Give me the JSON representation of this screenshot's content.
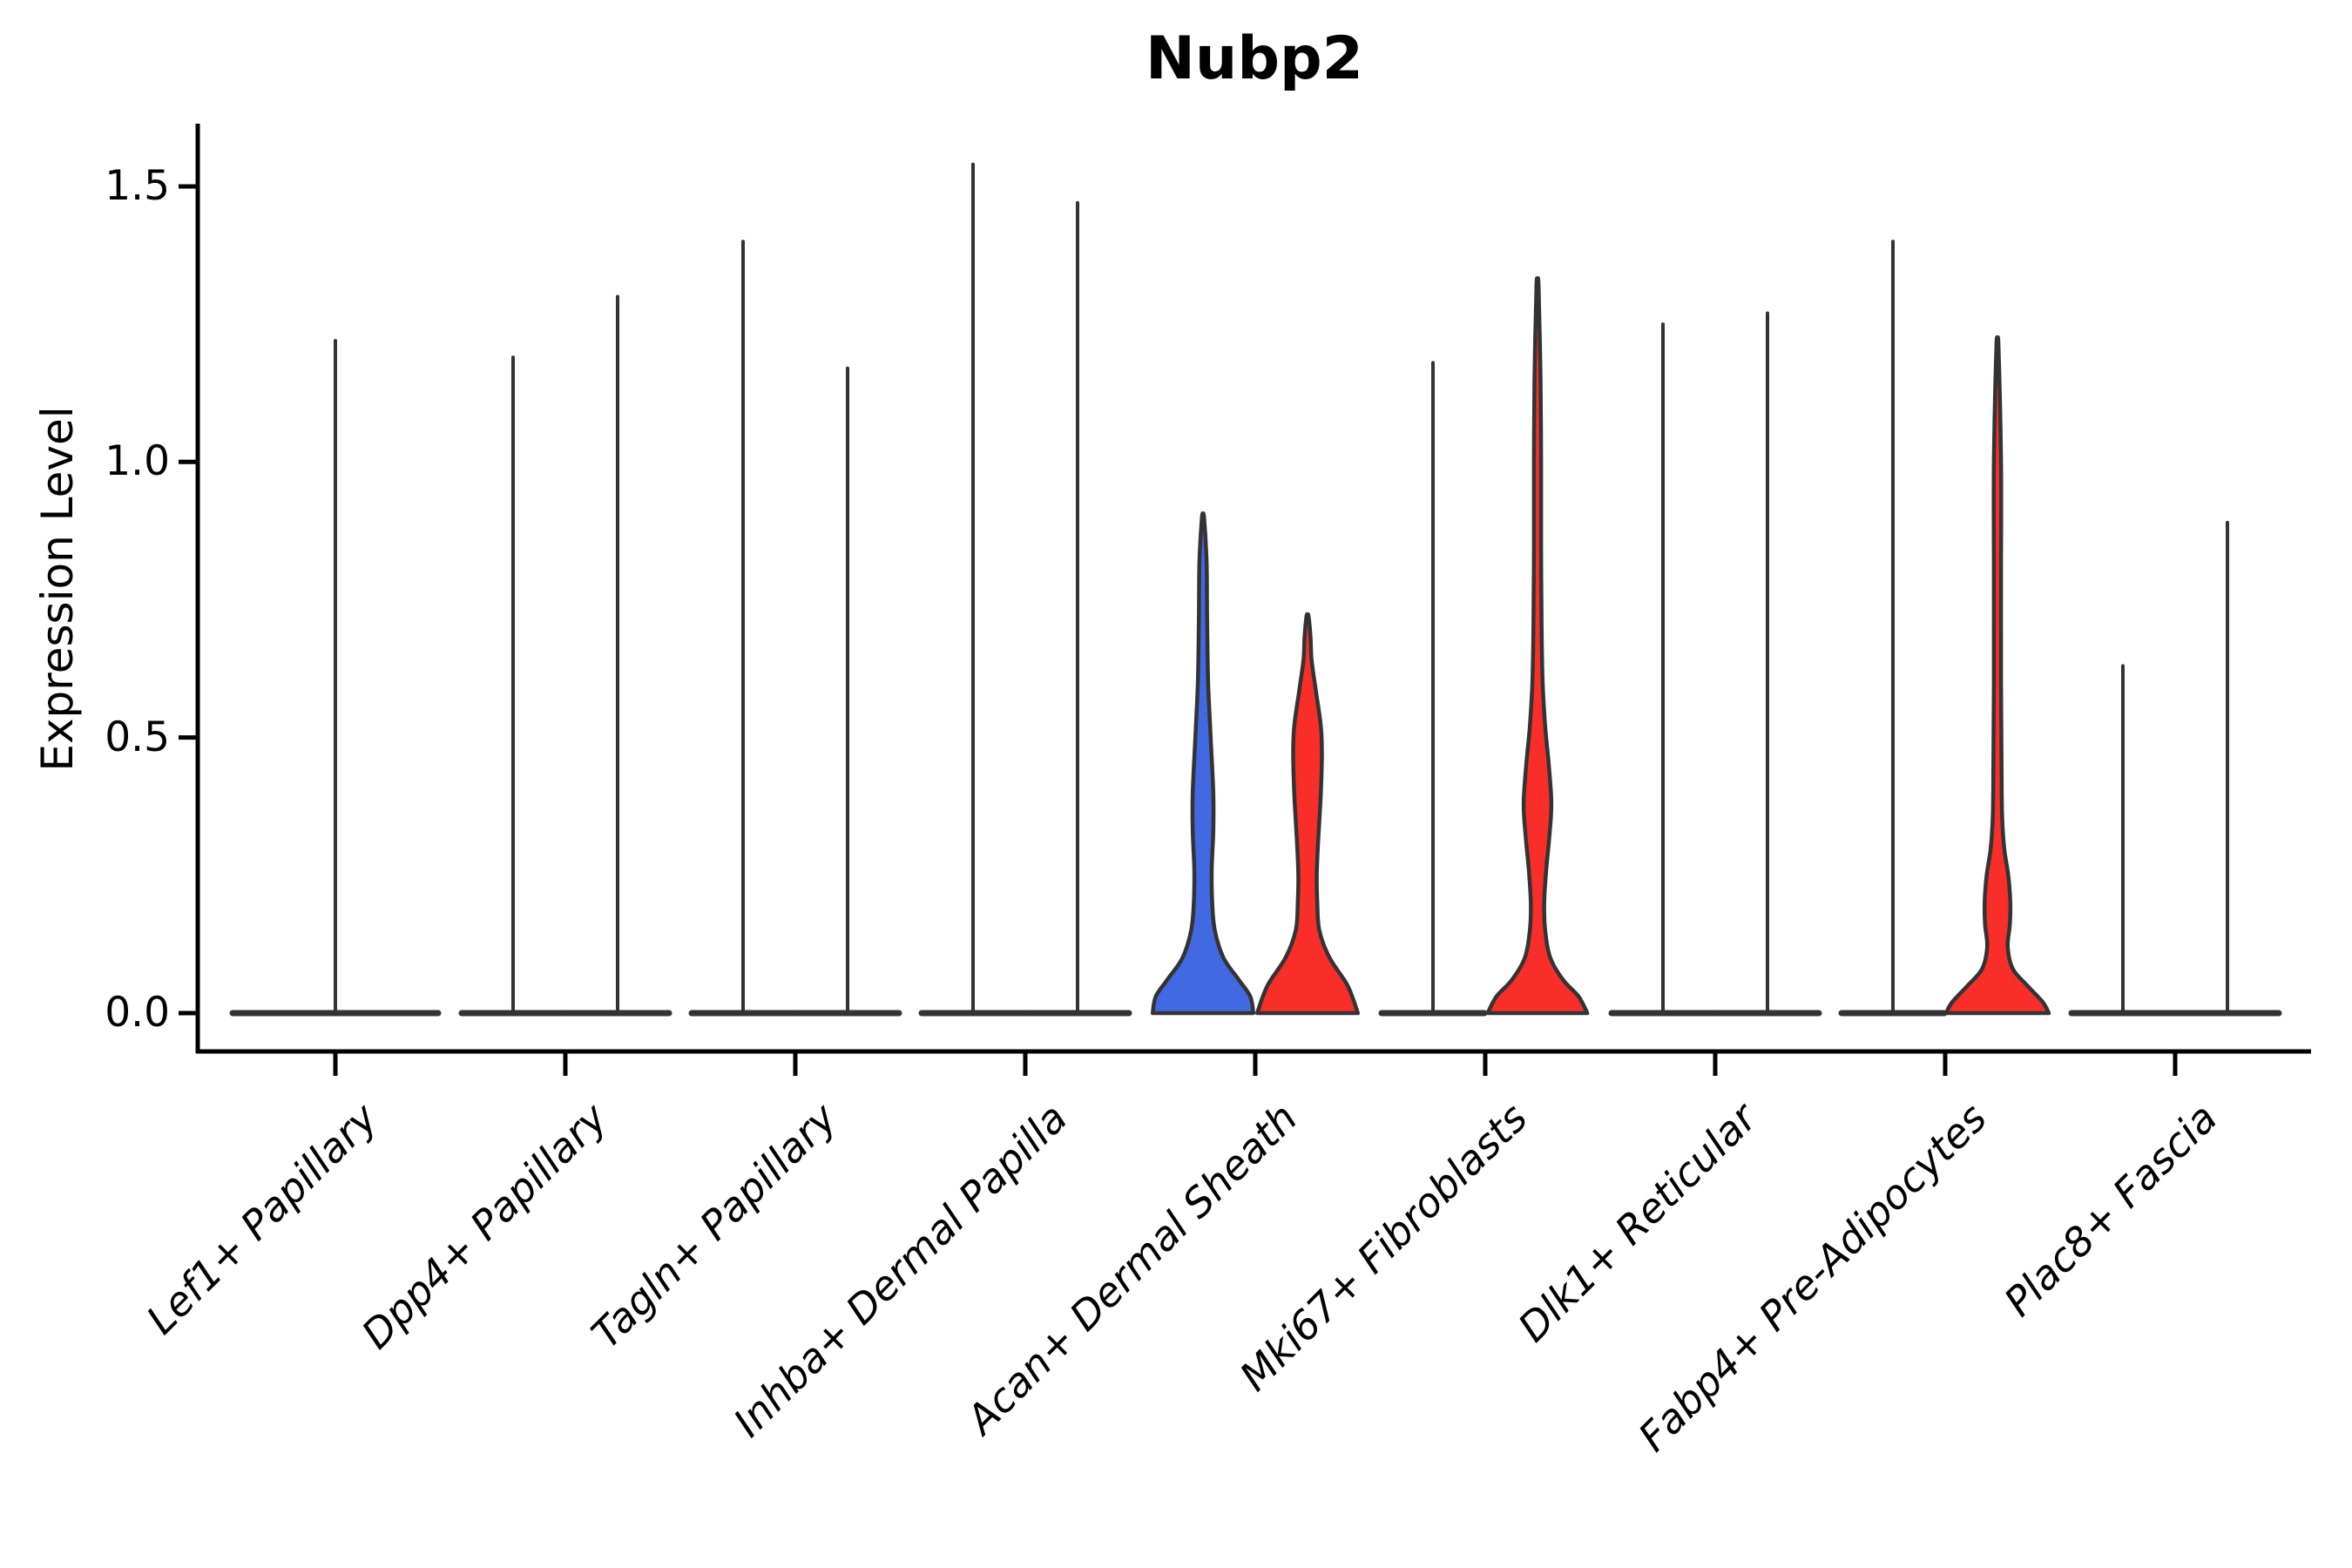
{
  "figure": {
    "title": "Nubp2",
    "ylabel": "Expression Level"
  },
  "chart_data": {
    "type": "violin",
    "title": "Nubp2",
    "xlabel": "",
    "ylabel": "Expression Level",
    "ylim": [
      -0.07,
      1.61
    ],
    "yticks": [
      0.0,
      0.5,
      1.0,
      1.5
    ],
    "ytick_labels": [
      "0.0",
      "0.5",
      "1.0",
      "1.5"
    ],
    "grid": false,
    "legend": "none",
    "categories": [
      "Lef1+ Papillary",
      "Dpp4+ Papillary",
      "Tagln+ Papillary",
      "Inhba+ Dermal Papilla",
      "Acan+ Dermal Sheath",
      "Mki67+ Fibroblasts",
      "Dlk1+ Reticular",
      "Fabp4+ Pre-Adipocytes",
      "Plac8+ Fascia"
    ],
    "split_fill_colors": {
      "blue": "#4169E1",
      "red": "#FA2E28"
    },
    "edge_color": "#333333",
    "axis_color": "#000000",
    "violins": [
      {
        "category": "Lef1+ Papillary",
        "category_index": 0,
        "position": "center",
        "style": "spike",
        "max_expression": 1.22
      },
      {
        "category": "Dpp4+ Papillary",
        "category_index": 1,
        "position": "left",
        "style": "spike",
        "max_expression": 1.19
      },
      {
        "category": "Dpp4+ Papillary",
        "category_index": 1,
        "position": "right",
        "style": "spike",
        "max_expression": 1.3
      },
      {
        "category": "Tagln+ Papillary",
        "category_index": 2,
        "position": "left",
        "style": "spike",
        "max_expression": 1.4
      },
      {
        "category": "Tagln+ Papillary",
        "category_index": 2,
        "position": "right",
        "style": "spike",
        "max_expression": 1.17
      },
      {
        "category": "Inhba+ Dermal Papilla",
        "category_index": 3,
        "position": "left",
        "style": "spike",
        "max_expression": 1.54
      },
      {
        "category": "Inhba+ Dermal Papilla",
        "category_index": 3,
        "position": "right",
        "style": "spike",
        "max_expression": 1.47
      },
      {
        "category": "Acan+ Dermal Sheath",
        "category_index": 4,
        "position": "left",
        "style": "filled",
        "fill": "#4169E1",
        "max_expression": 0.9,
        "profile": [
          [
            0.0,
            0.98
          ],
          [
            0.03,
            0.92
          ],
          [
            0.06,
            0.7
          ],
          [
            0.1,
            0.4
          ],
          [
            0.15,
            0.23
          ],
          [
            0.2,
            0.18
          ],
          [
            0.26,
            0.17
          ],
          [
            0.33,
            0.2
          ],
          [
            0.4,
            0.2
          ],
          [
            0.5,
            0.15
          ],
          [
            0.6,
            0.1
          ],
          [
            0.72,
            0.08
          ],
          [
            0.82,
            0.07
          ],
          [
            0.9,
            0.02
          ]
        ]
      },
      {
        "category": "Acan+ Dermal Sheath",
        "category_index": 4,
        "position": "right",
        "style": "filled",
        "fill": "#FA2E28",
        "max_expression": 0.72,
        "profile": [
          [
            0.0,
            0.98
          ],
          [
            0.05,
            0.78
          ],
          [
            0.1,
            0.43
          ],
          [
            0.15,
            0.23
          ],
          [
            0.2,
            0.19
          ],
          [
            0.25,
            0.18
          ],
          [
            0.3,
            0.2
          ],
          [
            0.35,
            0.23
          ],
          [
            0.4,
            0.26
          ],
          [
            0.47,
            0.28
          ],
          [
            0.52,
            0.26
          ],
          [
            0.58,
            0.17
          ],
          [
            0.64,
            0.08
          ],
          [
            0.68,
            0.06
          ],
          [
            0.72,
            0.02
          ]
        ]
      },
      {
        "category": "Mki67+ Fibroblasts",
        "category_index": 5,
        "position": "left",
        "style": "spike",
        "max_expression": 1.18
      },
      {
        "category": "Mki67+ Fibroblasts",
        "category_index": 5,
        "position": "right",
        "style": "filled",
        "fill": "#FA2E28",
        "max_expression": 1.32,
        "profile": [
          [
            0.0,
            0.97
          ],
          [
            0.03,
            0.8
          ],
          [
            0.06,
            0.5
          ],
          [
            0.1,
            0.25
          ],
          [
            0.15,
            0.15
          ],
          [
            0.2,
            0.13
          ],
          [
            0.26,
            0.17
          ],
          [
            0.32,
            0.23
          ],
          [
            0.38,
            0.27
          ],
          [
            0.45,
            0.22
          ],
          [
            0.52,
            0.15
          ],
          [
            0.6,
            0.1
          ],
          [
            0.7,
            0.08
          ],
          [
            0.85,
            0.07
          ],
          [
            1.0,
            0.07
          ],
          [
            1.15,
            0.06
          ],
          [
            1.32,
            0.02
          ]
        ]
      },
      {
        "category": "Dlk1+ Reticular",
        "category_index": 6,
        "position": "left",
        "style": "spike",
        "max_expression": 1.25
      },
      {
        "category": "Dlk1+ Reticular",
        "category_index": 6,
        "position": "right",
        "style": "spike",
        "max_expression": 1.27
      },
      {
        "category": "Fabp4+ Pre-Adipocytes",
        "category_index": 7,
        "position": "left",
        "style": "spike",
        "max_expression": 1.4
      },
      {
        "category": "Fabp4+ Pre-Adipocytes",
        "category_index": 7,
        "position": "right",
        "style": "filled",
        "fill": "#FA2E28",
        "max_expression": 1.21,
        "profile": [
          [
            0.0,
            1.0
          ],
          [
            0.02,
            0.88
          ],
          [
            0.05,
            0.58
          ],
          [
            0.08,
            0.3
          ],
          [
            0.12,
            0.2
          ],
          [
            0.16,
            0.24
          ],
          [
            0.2,
            0.25
          ],
          [
            0.25,
            0.21
          ],
          [
            0.3,
            0.13
          ],
          [
            0.36,
            0.09
          ],
          [
            0.45,
            0.08
          ],
          [
            0.6,
            0.07
          ],
          [
            0.8,
            0.07
          ],
          [
            1.0,
            0.07
          ],
          [
            1.21,
            0.02
          ]
        ]
      },
      {
        "category": "Plac8+ Fascia",
        "category_index": 8,
        "position": "left",
        "style": "spike",
        "max_expression": 0.63
      },
      {
        "category": "Plac8+ Fascia",
        "category_index": 8,
        "position": "right",
        "style": "spike",
        "max_expression": 0.89
      }
    ]
  }
}
